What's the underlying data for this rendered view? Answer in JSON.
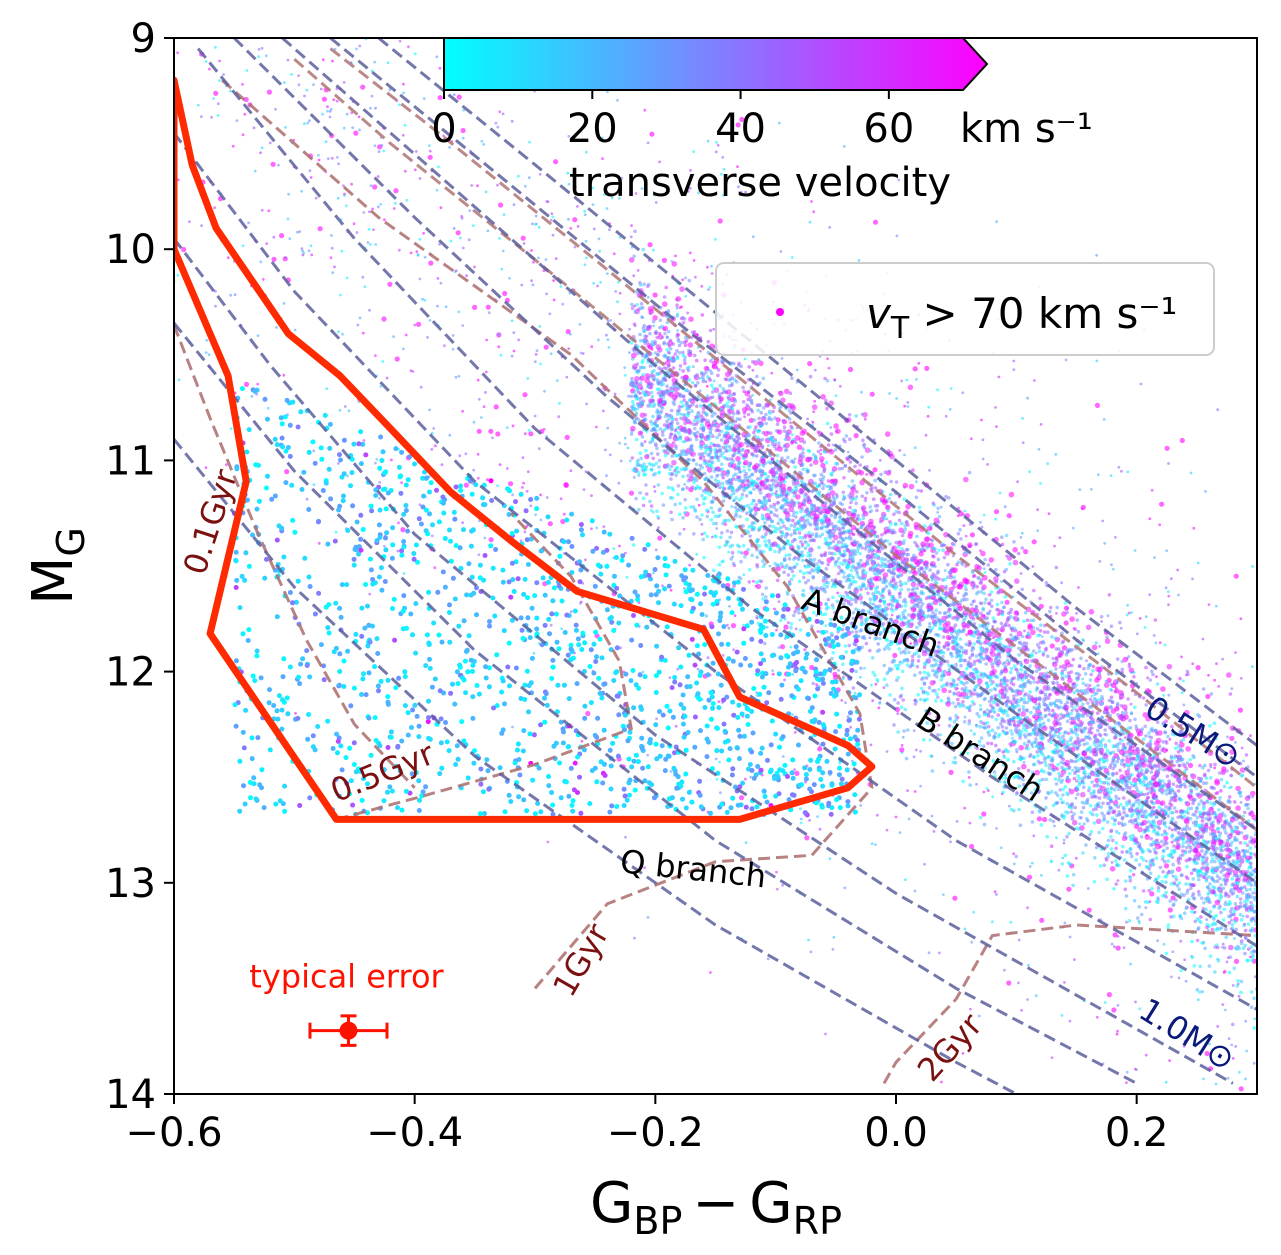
{
  "chart_data": {
    "type": "scatter",
    "title": "",
    "xlabel": "G",
    "xlabel_sub1": "BP",
    "xlabel_minus": "−",
    "xlabel_sub2": "RP",
    "ylabel": "M",
    "ylabel_sub": "G",
    "xlim": [
      -0.6,
      0.3
    ],
    "ylim": [
      14,
      9
    ],
    "y_inverted": true,
    "grid": false,
    "x_ticks": [
      -0.6,
      -0.4,
      -0.2,
      0.0,
      0.2
    ],
    "x_tick_labels": [
      "−0.6",
      "−0.4",
      "−0.2",
      "0.0",
      "0.2"
    ],
    "y_ticks": [
      9,
      10,
      11,
      12,
      13,
      14
    ],
    "y_tick_labels": [
      "9",
      "10",
      "11",
      "12",
      "13",
      "14"
    ],
    "colorbar": {
      "label": "transverse velocity",
      "unit": "km s⁻¹",
      "range": [
        0,
        70
      ],
      "ticks": [
        "0",
        "20",
        "40",
        "60"
      ],
      "extend": "max",
      "color_low": "#00ffff",
      "color_high": "#ff00ff"
    },
    "legend": {
      "placement": "upper-right",
      "entry": "v",
      "entry_sub": "T",
      "entry_rest": " > 70 km s⁻¹",
      "marker_color": "#ff00ff"
    },
    "selection_polygon": {
      "color": "#ff2a00",
      "points": [
        [
          -0.6,
          9.2
        ],
        [
          -0.585,
          9.6
        ],
        [
          -0.565,
          9.9
        ],
        [
          -0.535,
          10.15
        ],
        [
          -0.505,
          10.4
        ],
        [
          -0.462,
          10.6
        ],
        [
          -0.42,
          10.85
        ],
        [
          -0.37,
          11.15
        ],
        [
          -0.32,
          11.38
        ],
        [
          -0.265,
          11.62
        ],
        [
          -0.16,
          11.8
        ],
        [
          -0.13,
          12.12
        ],
        [
          -0.04,
          12.35
        ],
        [
          -0.02,
          12.45
        ],
        [
          -0.04,
          12.55
        ],
        [
          -0.13,
          12.7
        ],
        [
          -0.465,
          12.7
        ],
        [
          -0.57,
          11.82
        ],
        [
          -0.54,
          11.1
        ],
        [
          -0.555,
          10.6
        ],
        [
          -0.6,
          10.0
        ]
      ]
    },
    "isochrones": {
      "color": "#b07474",
      "lines": [
        {
          "label": "0.1Gyr",
          "points": [
            [
              -0.6,
              10.36
            ],
            [
              -0.57,
              10.8
            ],
            [
              -0.53,
              11.35
            ],
            [
              -0.49,
              11.85
            ],
            [
              -0.45,
              12.25
            ],
            [
              -0.4,
              12.55
            ]
          ]
        },
        {
          "label": "0.5Gyr",
          "points": [
            [
              -0.465,
              12.7
            ],
            [
              -0.4,
              12.6
            ],
            [
              -0.3,
              12.44
            ],
            [
              -0.22,
              12.27
            ],
            [
              -0.23,
              11.95
            ],
            [
              -0.27,
              11.55
            ],
            [
              -0.32,
              11.25
            ]
          ]
        },
        {
          "label": "1Gyr",
          "points": [
            [
              -0.3,
              13.5
            ],
            [
              -0.24,
              13.1
            ],
            [
              -0.15,
              12.9
            ],
            [
              -0.07,
              12.87
            ],
            [
              -0.02,
              12.55
            ],
            [
              -0.03,
              12.2
            ],
            [
              -0.09,
              11.6
            ],
            [
              -0.16,
              11.1
            ],
            [
              -0.27,
              10.5
            ],
            [
              -0.43,
              9.85
            ],
            [
              -0.56,
              9.2
            ]
          ]
        },
        {
          "label": "2Gyr",
          "points": [
            [
              -0.01,
              13.95
            ],
            [
              0.0,
              13.85
            ],
            [
              0.05,
              13.55
            ],
            [
              0.08,
              13.25
            ],
            [
              0.15,
              13.2
            ],
            [
              0.3,
              13.25
            ]
          ]
        }
      ],
      "extra": [
        [
          [
            -0.5,
            9.1
          ],
          [
            -0.42,
            9.5
          ],
          [
            -0.3,
            10.05
          ],
          [
            -0.16,
            10.7
          ],
          [
            0.0,
            11.45
          ],
          [
            0.15,
            12.1
          ],
          [
            0.3,
            12.75
          ]
        ],
        [
          [
            -0.47,
            9.05
          ],
          [
            -0.38,
            9.45
          ],
          [
            -0.25,
            10.05
          ],
          [
            -0.1,
            10.75
          ],
          [
            0.05,
            11.45
          ],
          [
            0.2,
            12.1
          ],
          [
            0.3,
            12.55
          ]
        ]
      ]
    },
    "mass_tracks": {
      "color": "#5a5f9c",
      "start_label": "0.5M⊙",
      "end_label": "1.0M⊙",
      "lines": [
        [
          [
            -0.43,
            9.0
          ],
          [
            -0.3,
            9.6
          ],
          [
            -0.15,
            10.3
          ],
          [
            0.0,
            11.0
          ],
          [
            0.15,
            11.7
          ],
          [
            0.3,
            12.35
          ]
        ],
        [
          [
            -0.47,
            9.0
          ],
          [
            -0.33,
            9.65
          ],
          [
            -0.17,
            10.4
          ],
          [
            0.0,
            11.15
          ],
          [
            0.15,
            11.85
          ],
          [
            0.3,
            12.5
          ]
        ],
        [
          [
            -0.51,
            9.0
          ],
          [
            -0.36,
            9.75
          ],
          [
            -0.2,
            10.55
          ],
          [
            -0.05,
            11.25
          ],
          [
            0.1,
            11.95
          ],
          [
            0.3,
            12.75
          ]
        ],
        [
          [
            -0.55,
            9.0
          ],
          [
            -0.4,
            9.85
          ],
          [
            -0.24,
            10.7
          ],
          [
            -0.08,
            11.45
          ],
          [
            0.1,
            12.2
          ],
          [
            0.3,
            13.0
          ]
        ],
        [
          [
            -0.58,
            9.05
          ],
          [
            -0.45,
            9.95
          ],
          [
            -0.3,
            10.85
          ],
          [
            -0.12,
            11.7
          ],
          [
            0.08,
            12.5
          ],
          [
            0.3,
            13.3
          ]
        ],
        [
          [
            -0.6,
            9.45
          ],
          [
            -0.5,
            10.2
          ],
          [
            -0.35,
            11.1
          ],
          [
            -0.15,
            12.0
          ],
          [
            0.05,
            12.8
          ],
          [
            0.3,
            13.6
          ]
        ],
        [
          [
            -0.6,
            9.95
          ],
          [
            -0.52,
            10.55
          ],
          [
            -0.4,
            11.35
          ],
          [
            -0.2,
            12.3
          ],
          [
            0.0,
            13.05
          ],
          [
            0.28,
            13.95
          ]
        ],
        [
          [
            -0.6,
            10.35
          ],
          [
            -0.5,
            11.05
          ],
          [
            -0.35,
            11.9
          ],
          [
            -0.15,
            12.8
          ],
          [
            0.05,
            13.5
          ],
          [
            0.2,
            13.95
          ]
        ],
        [
          [
            -0.6,
            10.9
          ],
          [
            -0.5,
            11.6
          ],
          [
            -0.35,
            12.4
          ],
          [
            -0.15,
            13.2
          ],
          [
            0.05,
            13.85
          ],
          [
            0.1,
            14.0
          ]
        ]
      ]
    },
    "annotations": [
      {
        "text": "A branch",
        "x": -0.08,
        "y": 11.7,
        "angle": 20
      },
      {
        "text": "B branch",
        "x": 0.015,
        "y": 12.25,
        "angle": 33
      },
      {
        "text": "Q branch",
        "x": -0.23,
        "y": 12.95,
        "angle": 6
      }
    ],
    "typical_error": {
      "label": "typical error",
      "x": -0.455,
      "y": 13.7,
      "xerr": 0.032,
      "yerr": 0.07,
      "color": "#ff1100"
    }
  }
}
